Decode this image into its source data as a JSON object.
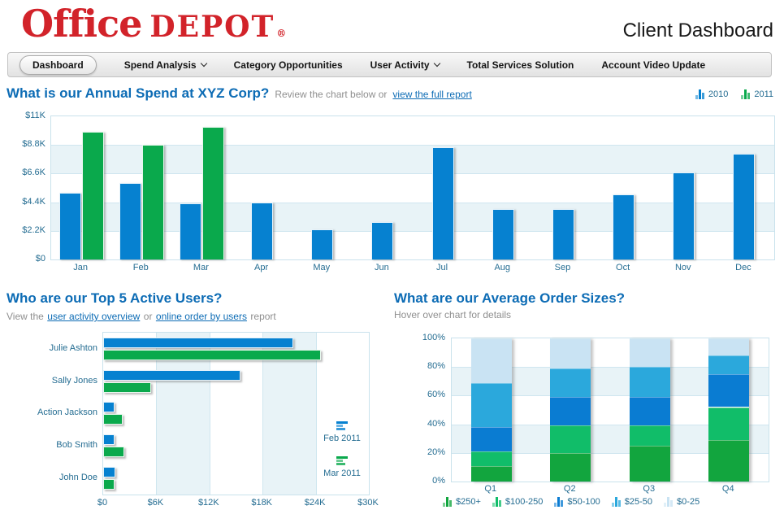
{
  "header": {
    "logo": {
      "office": "Office",
      "depot": "DEPOT",
      "reg": "®"
    },
    "title": "Client Dashboard"
  },
  "nav": {
    "items": [
      {
        "label": "Dashboard",
        "active": true,
        "dropdown": false
      },
      {
        "label": "Spend Analysis",
        "active": false,
        "dropdown": true,
        "icon": "chevron-down-icon"
      },
      {
        "label": "Category Opportunities",
        "active": false,
        "dropdown": false
      },
      {
        "label": "User Activity",
        "active": false,
        "dropdown": true,
        "icon": "chevron-down-icon"
      },
      {
        "label": "Total Services Solution",
        "active": false,
        "dropdown": false
      },
      {
        "label": "Account Video Update",
        "active": false,
        "dropdown": false
      }
    ]
  },
  "annual": {
    "title": "What is our Annual Spend at XYZ Corp?",
    "subtitle": "Review the chart below or",
    "link": "view the full report"
  },
  "users": {
    "title": "Who are our Top 5 Active Users?",
    "subtitle_prefix": "View the",
    "link1": "user activity overview",
    "subtitle_mid": "or",
    "link2": "online order by users",
    "subtitle_suffix": "report"
  },
  "orders": {
    "title": "What are our Average Order Sizes?",
    "subtitle": "Hover over chart for details"
  },
  "colors": {
    "blue": "#0681d0",
    "green": "#0aa94c",
    "band_tint": "#e8f3f7",
    "gridline": "#cfe6ef",
    "title_blue": "#0d6cb5",
    "axis_text": "#256d92",
    "logo_red": "#d2232a"
  },
  "chart_data": [
    {
      "type": "bar",
      "title": "What is our Annual Spend at XYZ Corp?",
      "categories": [
        "Jan",
        "Feb",
        "Mar",
        "Apr",
        "May",
        "Jun",
        "Jul",
        "Aug",
        "Sep",
        "Oct",
        "Nov",
        "Dec"
      ],
      "series": [
        {
          "name": "2010",
          "color": "#0681d0",
          "values": [
            5100,
            5900,
            4300,
            4400,
            2300,
            2900,
            8600,
            3900,
            3900,
            5000,
            6700,
            8100
          ]
        },
        {
          "name": "2011",
          "color": "#0aa94c",
          "values": [
            9800,
            8800,
            10200,
            null,
            null,
            null,
            null,
            null,
            null,
            null,
            null,
            null
          ]
        }
      ],
      "ylim": [
        0,
        11000
      ],
      "yticks": [
        "$0",
        "$2.2K",
        "$4.4K",
        "$6.6K",
        "$8.8K",
        "$11K"
      ],
      "grid": true,
      "legend_position": "top-right"
    },
    {
      "type": "bar-horizontal",
      "title": "Who are our Top 5 Active Users?",
      "categories": [
        "Julie Ashton",
        "Sally Jones",
        "Action Jackson",
        "Bob Smith",
        "John Doe"
      ],
      "series": [
        {
          "name": "Feb 2011",
          "color": "#0681d0",
          "values": [
            21500,
            15500,
            1300,
            1300,
            1400
          ]
        },
        {
          "name": "Mar 2011",
          "color": "#0aa94c",
          "values": [
            24600,
            5400,
            2200,
            2400,
            1300
          ]
        }
      ],
      "xlim": [
        0,
        30000
      ],
      "xticks": [
        "$0",
        "$6K",
        "$12K",
        "$18K",
        "$24K",
        "$30K"
      ],
      "grid": true,
      "legend_position": "inside-right"
    },
    {
      "type": "stacked-bar",
      "title": "What are our Average Order Sizes?",
      "categories": [
        "Q1",
        "Q2",
        "Q3",
        "Q4"
      ],
      "series": [
        {
          "name": "$250+",
          "color": "#12a53e",
          "values": [
            11,
            20,
            25,
            29
          ]
        },
        {
          "name": "$100-250",
          "color": "#11bd69",
          "values": [
            10,
            19,
            14,
            23
          ]
        },
        {
          "name": "$50-100",
          "color": "#0a7cd2",
          "values": [
            17,
            20,
            20,
            23
          ]
        },
        {
          "name": "$25-50",
          "color": "#2ba8dc",
          "values": [
            31,
            20,
            21,
            13
          ]
        },
        {
          "name": "$0-25",
          "color": "#c9e3f3",
          "values": [
            31,
            21,
            20,
            12
          ]
        }
      ],
      "ylim": [
        0,
        100
      ],
      "yticks": [
        "0%",
        "20%",
        "40%",
        "60%",
        "80%",
        "100%"
      ],
      "grid": true,
      "legend_position": "bottom"
    }
  ]
}
